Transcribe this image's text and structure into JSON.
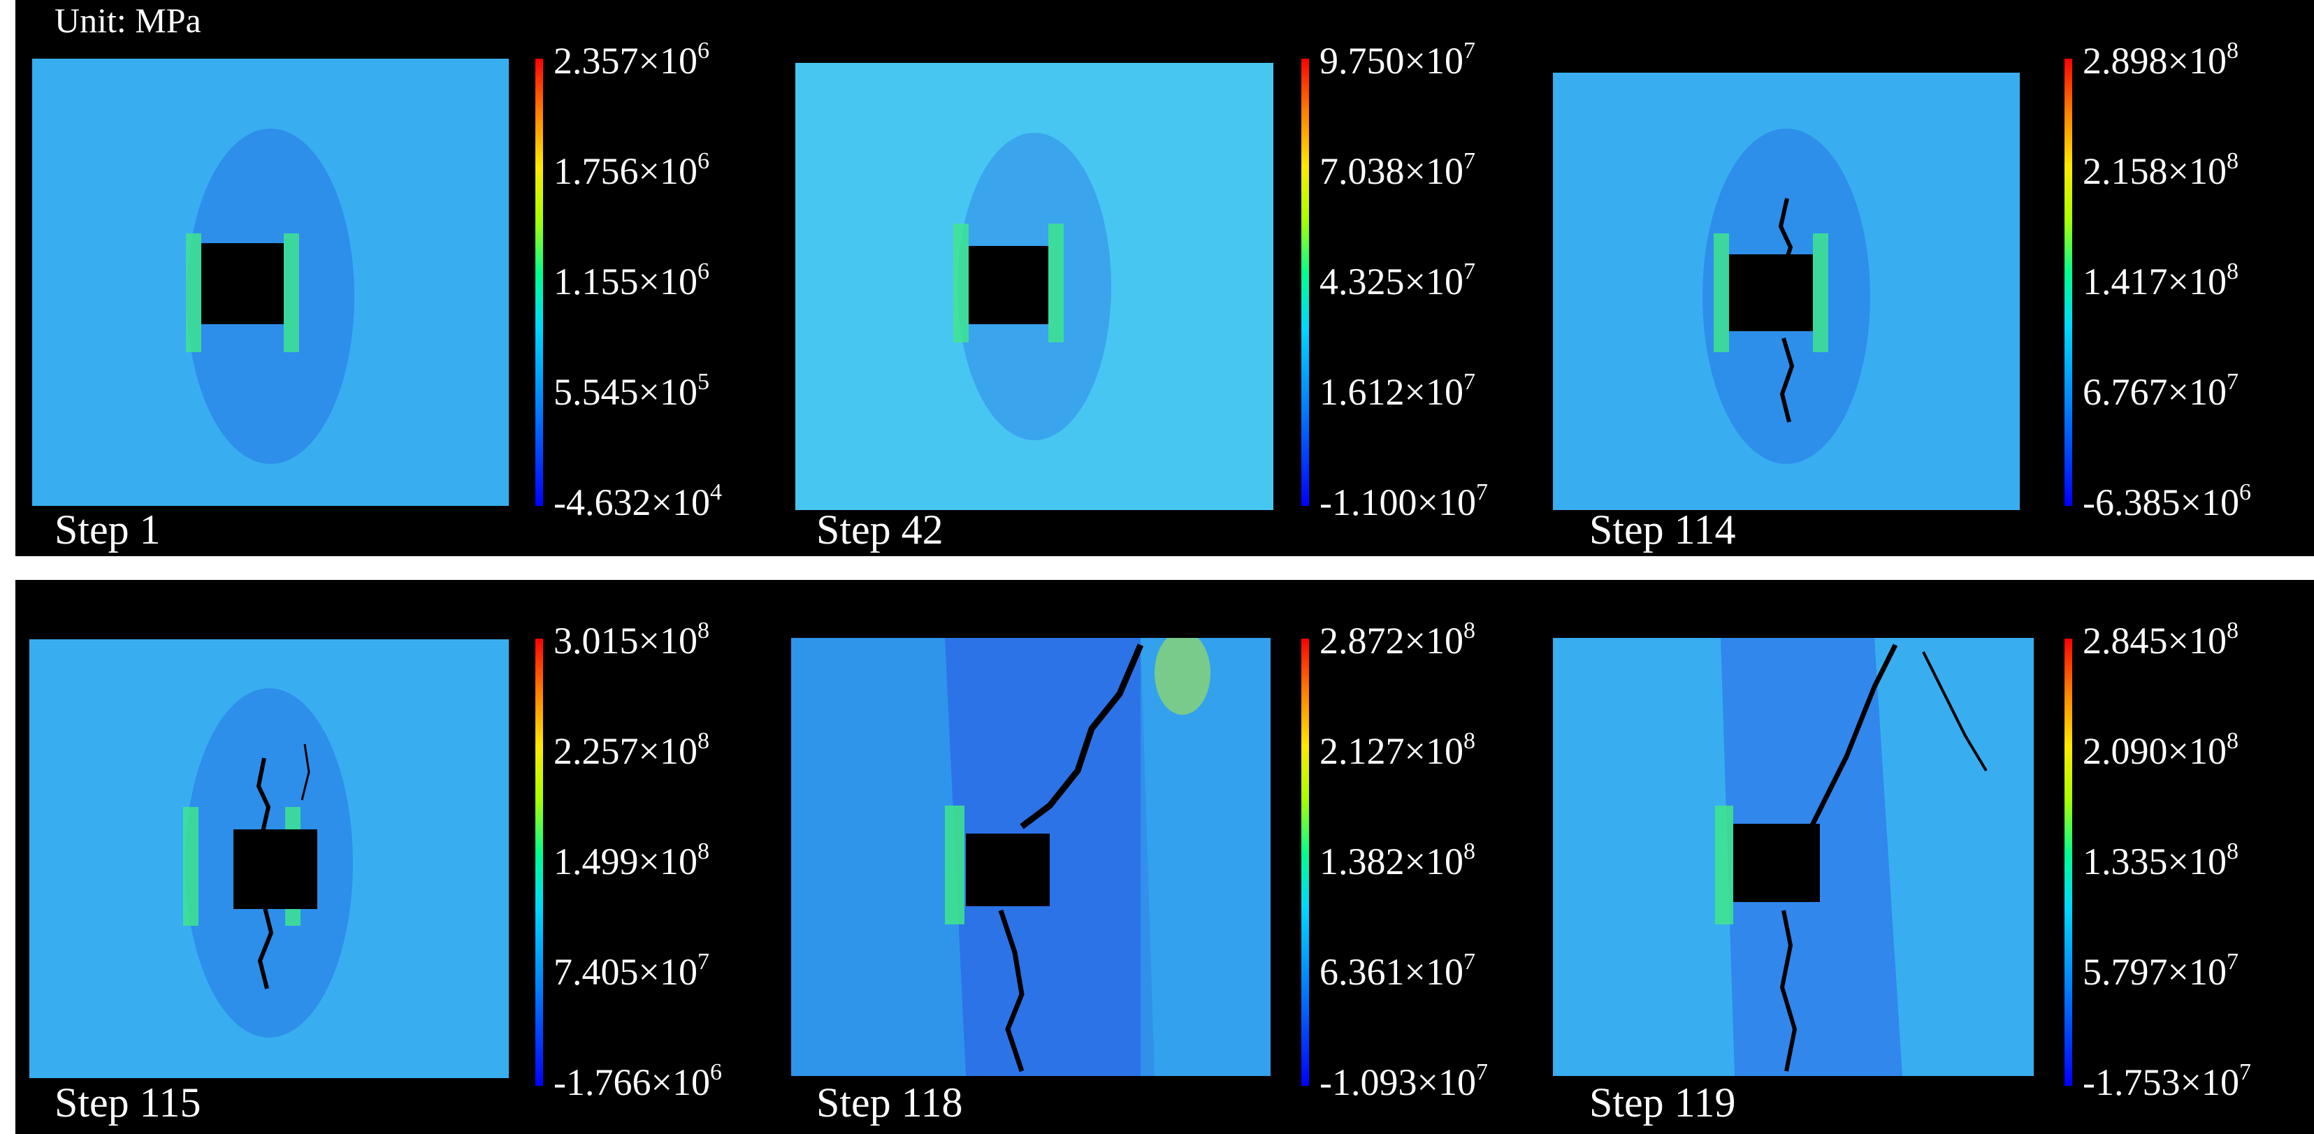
{
  "unit_label": "Unit: MPa",
  "panels": [
    {
      "step": "Step 1",
      "ticks": [
        {
          "m": "2.357",
          "e": "6"
        },
        {
          "m": "1.756",
          "e": "6"
        },
        {
          "m": "1.155",
          "e": "6"
        },
        {
          "m": "5.545",
          "e": "5"
        },
        {
          "m": "-4.632",
          "e": "4"
        }
      ]
    },
    {
      "step": "Step 42",
      "ticks": [
        {
          "m": "9.750",
          "e": "7"
        },
        {
          "m": "7.038",
          "e": "7"
        },
        {
          "m": "4.325",
          "e": "7"
        },
        {
          "m": "1.612",
          "e": "7"
        },
        {
          "m": "-1.100",
          "e": "7"
        }
      ]
    },
    {
      "step": "Step 114",
      "ticks": [
        {
          "m": "2.898",
          "e": "8"
        },
        {
          "m": "2.158",
          "e": "8"
        },
        {
          "m": "1.417",
          "e": "8"
        },
        {
          "m": "6.767",
          "e": "7"
        },
        {
          "m": "-6.385",
          "e": "6"
        }
      ]
    },
    {
      "step": "Step 115",
      "ticks": [
        {
          "m": "3.015",
          "e": "8"
        },
        {
          "m": "2.257",
          "e": "8"
        },
        {
          "m": "1.499",
          "e": "8"
        },
        {
          "m": "7.405",
          "e": "7"
        },
        {
          "m": "-1.766",
          "e": "6"
        }
      ]
    },
    {
      "step": "Step 118",
      "ticks": [
        {
          "m": "2.872",
          "e": "8"
        },
        {
          "m": "2.127",
          "e": "8"
        },
        {
          "m": "1.382",
          "e": "8"
        },
        {
          "m": "6.361",
          "e": "7"
        },
        {
          "m": "-1.093",
          "e": "7"
        }
      ]
    },
    {
      "step": "Step 119",
      "ticks": [
        {
          "m": "2.845",
          "e": "8"
        },
        {
          "m": "2.090",
          "e": "8"
        },
        {
          "m": "1.335",
          "e": "8"
        },
        {
          "m": "5.797",
          "e": "7"
        },
        {
          "m": "-1.753",
          "e": "7"
        }
      ]
    }
  ],
  "colors": {
    "background": "#000000",
    "field_base": "#38aef0",
    "field_step42": "#48c6f2",
    "hole": "#000000"
  }
}
